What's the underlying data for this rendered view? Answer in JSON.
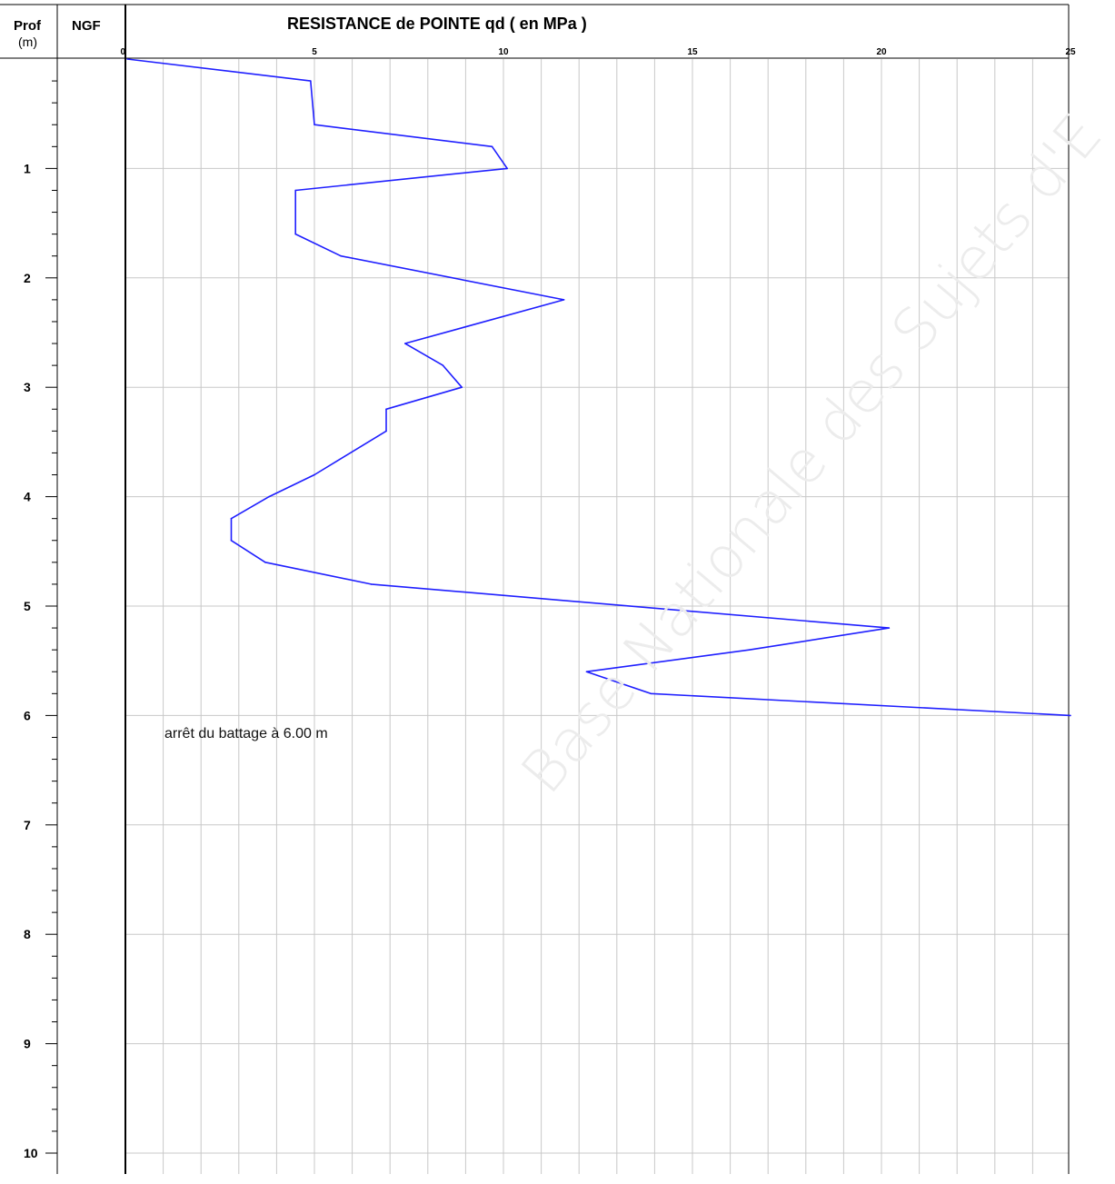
{
  "header": {
    "prof_label": "Prof",
    "unit_label": "(m)",
    "ngf_label": "NGF",
    "title": "RESISTANCE de POINTE qd ( en MPa )"
  },
  "annotation": "arrêt du battage à 6.00 m",
  "watermark": "Base Nationale des Sujets d'E",
  "colors": {
    "curve": "#1f1fff",
    "grid": "#c8c8c8",
    "axis": "#000000"
  },
  "chart_data": {
    "type": "line",
    "title": "RESISTANCE de POINTE qd ( en MPa )",
    "xlabel": "",
    "ylabel": "Prof (m)",
    "xlim": [
      0,
      25
    ],
    "ylim": [
      0,
      10.2
    ],
    "y_inverted": true,
    "grid": true,
    "x_ticks": [
      0,
      5,
      10,
      15,
      20,
      25
    ],
    "x_tick_labels": [
      "0",
      "5",
      "10",
      "15",
      "20",
      "25"
    ],
    "y_ticks": [
      1,
      2,
      3,
      4,
      5,
      6,
      7,
      8,
      9,
      10
    ],
    "y_tick_labels": [
      "1",
      "2",
      "3",
      "4",
      "5",
      "6",
      "7",
      "8",
      "9",
      "10"
    ],
    "series": [
      {
        "x": [
          0.05,
          4.9,
          5.0,
          9.7,
          10.1,
          4.5,
          4.5,
          5.7,
          11.6,
          7.4,
          8.4,
          8.9,
          6.9,
          6.9,
          5.0,
          3.8,
          2.8,
          2.8,
          3.7,
          6.5,
          20.2,
          16.5,
          12.2,
          13.9,
          25.0
        ],
        "y": [
          0.0,
          0.2,
          0.6,
          0.8,
          1.0,
          1.2,
          1.6,
          1.8,
          2.2,
          2.6,
          2.8,
          3.0,
          3.2,
          3.4,
          3.8,
          4.0,
          4.2,
          4.4,
          4.6,
          4.8,
          5.2,
          5.4,
          5.6,
          5.8,
          6.0
        ]
      }
    ]
  }
}
